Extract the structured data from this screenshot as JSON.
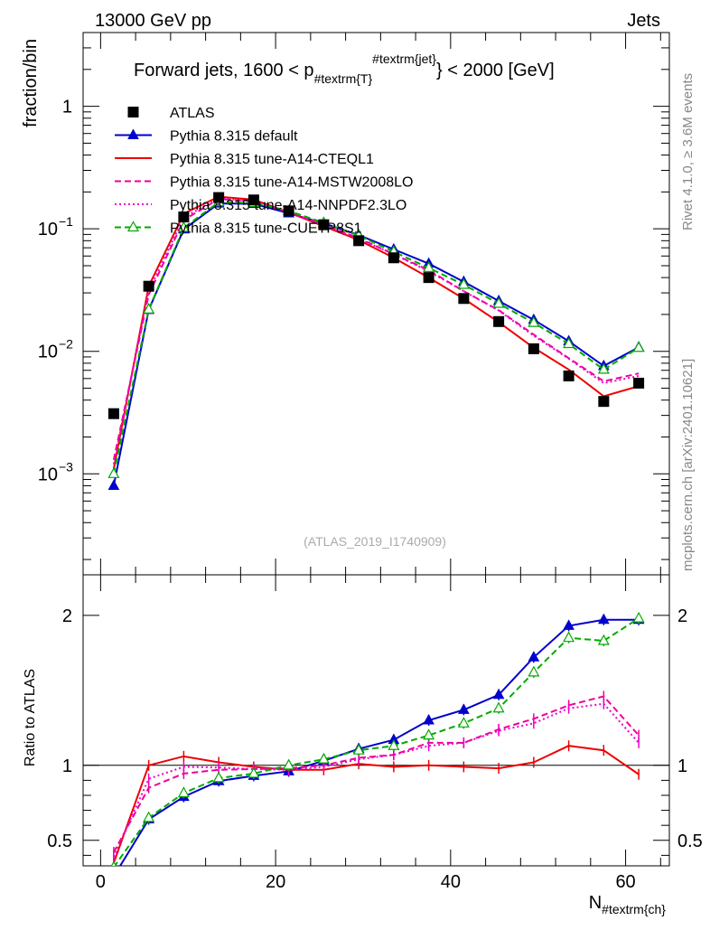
{
  "header": {
    "left": "13000 GeV pp",
    "right": "Jets",
    "title": "Forward jets, 1600 < p",
    "title_sub": "#textrm{T}",
    "title_sup": "#textrm{jet}",
    "title_end": "} < 2000 [GeV]",
    "side_top": "Rivet 4.1.0, ≥ 3.6M events",
    "side_bottom": "mcplots.cern.ch [arXiv:2401.10621]",
    "watermark": "(ATLAS_2019_I1740909)"
  },
  "chart_data": [
    {
      "type": "line",
      "scale": "log",
      "title": "Forward jets, 1600 < p_T^jet < 2000 [GeV]",
      "ylabel": "fraction/bin",
      "xlabel": "N",
      "xlabel_sub": "#textrm{ch}",
      "xlim": [
        -2,
        65
      ],
      "ylim": [
        0.00015,
        4
      ],
      "y_ticks": [
        {
          "value": 1,
          "label": "1"
        },
        {
          "value": 0.1,
          "label": "10",
          "exp": "−1"
        },
        {
          "value": 0.01,
          "label": "10",
          "exp": "−2"
        },
        {
          "value": 0.001,
          "label": "10",
          "exp": "−3"
        }
      ],
      "x": [
        1.5,
        5.5,
        9.5,
        13.5,
        17.5,
        21.5,
        25.5,
        29.5,
        33.5,
        37.5,
        41.5,
        45.5,
        49.5,
        53.5,
        57.5,
        61.5
      ],
      "data": {
        "name": "ATLAS",
        "color": "#000000",
        "values": [
          0.0031,
          0.034,
          0.125,
          0.18,
          0.172,
          0.14,
          0.108,
          0.08,
          0.058,
          0.04,
          0.027,
          0.0175,
          0.0105,
          0.0063,
          0.0039,
          0.0055
        ]
      },
      "series": [
        {
          "name": "Pythia 8.315 default",
          "color": "#0000cc",
          "style": "solid",
          "marker": "triangle",
          "values": [
            0.0008,
            0.0218,
            0.099,
            0.161,
            0.16,
            0.134,
            0.111,
            0.089,
            0.068,
            0.052,
            0.037,
            0.0258,
            0.0181,
            0.0121,
            0.0076,
            0.0108
          ]
        },
        {
          "name": "Pythia 8.315 tune-A14-CTEQL1",
          "color": "#ee0000",
          "style": "solid",
          "marker": "none",
          "values": [
            0.0011,
            0.034,
            0.133,
            0.183,
            0.173,
            0.136,
            0.105,
            0.081,
            0.058,
            0.04,
            0.0269,
            0.0173,
            0.0107,
            0.0071,
            0.0043,
            0.0052
          ]
        },
        {
          "name": "Pythia 8.315 tune-A14-MSTW2008LO",
          "color": "#ee0099",
          "style": "dashed",
          "marker": "none",
          "values": [
            0.0013,
            0.029,
            0.118,
            0.175,
            0.168,
            0.137,
            0.108,
            0.084,
            0.062,
            0.046,
            0.031,
            0.0217,
            0.0137,
            0.0088,
            0.0057,
            0.0066
          ]
        },
        {
          "name": "Pythia 8.315 tune-A14-NNPDF2.3LO",
          "color": "#ee00cc",
          "style": "dotted",
          "marker": "none",
          "values": [
            0.0012,
            0.031,
            0.124,
            0.177,
            0.168,
            0.136,
            0.107,
            0.083,
            0.062,
            0.045,
            0.031,
            0.0215,
            0.0134,
            0.0087,
            0.0055,
            0.0063
          ]
        },
        {
          "name": "Pythia 8.315 tune-CUETP8S1",
          "color": "#00aa00",
          "style": "dashed",
          "marker": "open-triangle",
          "values": [
            0.001,
            0.022,
            0.102,
            0.165,
            0.163,
            0.14,
            0.112,
            0.088,
            0.065,
            0.048,
            0.035,
            0.0245,
            0.0171,
            0.0115,
            0.0071,
            0.0107
          ]
        }
      ]
    },
    {
      "type": "line",
      "ylabel": "Ratio to ATLAS",
      "xlim": [
        -2,
        65
      ],
      "ylim": [
        0.33,
        2.27
      ],
      "x_ticks": [
        0,
        20,
        40,
        60
      ],
      "y_ticks": [
        0.5,
        1,
        2
      ],
      "reference": 1,
      "x": [
        1.5,
        5.5,
        9.5,
        13.5,
        17.5,
        21.5,
        25.5,
        29.5,
        33.5,
        37.5,
        41.5,
        45.5,
        49.5,
        53.5,
        57.5,
        61.5
      ],
      "series": [
        {
          "name": "Pythia 8.315 default",
          "values": [
            0.26,
            0.64,
            0.79,
            0.895,
            0.93,
            0.96,
            1.03,
            1.11,
            1.17,
            1.3,
            1.37,
            1.47,
            1.72,
            1.93,
            1.97,
            1.97
          ]
        },
        {
          "name": "Pythia 8.315 tune-A14-CTEQL1",
          "values": [
            0.35,
            1.0,
            1.06,
            1.02,
            0.99,
            0.97,
            0.97,
            1.01,
            0.99,
            1.0,
            0.99,
            0.98,
            1.02,
            1.13,
            1.1,
            0.94
          ]
        },
        {
          "name": "Pythia 8.315 tune-A14-MSTW2008LO",
          "values": [
            0.42,
            0.85,
            0.945,
            0.97,
            0.975,
            0.98,
            1.0,
            1.05,
            1.07,
            1.15,
            1.15,
            1.24,
            1.31,
            1.4,
            1.46,
            1.2
          ]
        },
        {
          "name": "Pythia 8.315 tune-A14-NNPDF2.3LO",
          "values": [
            0.39,
            0.91,
            0.99,
            0.985,
            0.975,
            0.97,
            0.99,
            1.04,
            1.07,
            1.13,
            1.15,
            1.23,
            1.28,
            1.38,
            1.41,
            1.15
          ]
        },
        {
          "name": "Pythia 8.315 tune-CUETP8S1",
          "values": [
            0.32,
            0.65,
            0.815,
            0.915,
            0.945,
            1.0,
            1.04,
            1.1,
            1.13,
            1.2,
            1.28,
            1.38,
            1.62,
            1.85,
            1.83,
            1.98
          ]
        }
      ]
    }
  ]
}
